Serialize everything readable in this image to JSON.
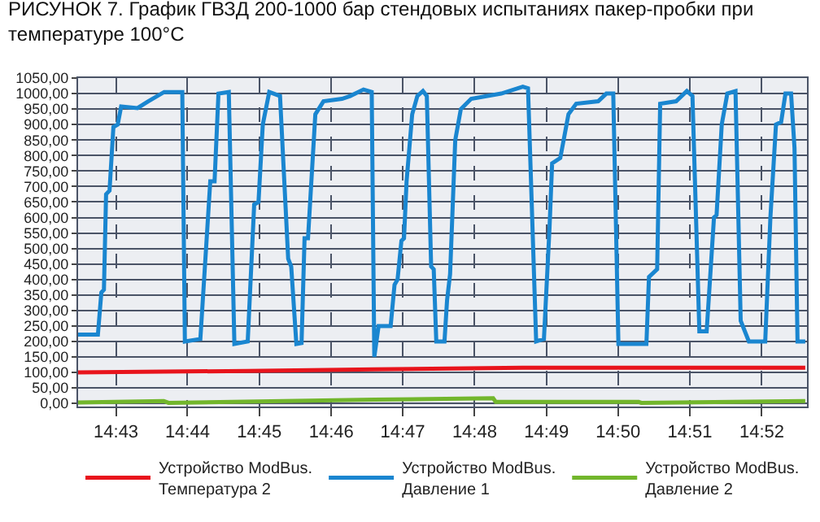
{
  "chart_data": {
    "type": "line",
    "title": "РИСУНОК 7. График ГВЗД 200-1000 бар стендовых испытаниях пакер-пробки при температуре 100°C",
    "xlim": [
      14.7079,
      14.8772
    ],
    "xticks": [
      {
        "value": 14.7167,
        "label": "14:43"
      },
      {
        "value": 14.7333,
        "label": "14:44"
      },
      {
        "value": 14.75,
        "label": "14:45"
      },
      {
        "value": 14.7667,
        "label": "14:46"
      },
      {
        "value": 14.7833,
        "label": "14:47"
      },
      {
        "value": 14.8,
        "label": "14:48"
      },
      {
        "value": 14.8167,
        "label": "14:49"
      },
      {
        "value": 14.8333,
        "label": "14:50"
      },
      {
        "value": 14.85,
        "label": "14:51"
      },
      {
        "value": 14.8667,
        "label": "14:52"
      }
    ],
    "ylim": [
      -10,
      1050
    ],
    "yticks": [
      {
        "value": 0,
        "label": "0,00"
      },
      {
        "value": 50,
        "label": "50,00"
      },
      {
        "value": 100,
        "label": "100,00"
      },
      {
        "value": 150,
        "label": "150,00"
      },
      {
        "value": 200,
        "label": "200,00"
      },
      {
        "value": 250,
        "label": "250,00"
      },
      {
        "value": 300,
        "label": "300,00"
      },
      {
        "value": 350,
        "label": "350,00"
      },
      {
        "value": 400,
        "label": "400,00"
      },
      {
        "value": 450,
        "label": "450,00"
      },
      {
        "value": 500,
        "label": "500,00"
      },
      {
        "value": 550,
        "label": "550,00"
      },
      {
        "value": 600,
        "label": "600,00"
      },
      {
        "value": 650,
        "label": "650,00"
      },
      {
        "value": 700,
        "label": "700,00"
      },
      {
        "value": 750,
        "label": "750,00"
      },
      {
        "value": 800,
        "label": "800,00"
      },
      {
        "value": 850,
        "label": "850,00"
      },
      {
        "value": 900,
        "label": "900,00"
      },
      {
        "value": 950,
        "label": "950,00"
      },
      {
        "value": 1000,
        "label": "1000,00"
      },
      {
        "value": 1050,
        "label": "1050,00"
      }
    ],
    "grid": true,
    "legend": "bottom",
    "marker": "none",
    "line_style": "solid",
    "series": [
      {
        "name": "Устройство ModBus. Температура 2",
        "color": "#e8141c",
        "x": [
          14.7079,
          14.7473,
          14.7767,
          14.8112,
          14.8768
        ],
        "values": [
          100,
          105,
          110,
          115,
          115
        ]
      },
      {
        "name": "Устройство ModBus. Давление 1",
        "color": "#1a86d0",
        "x": [
          14.7079,
          14.7125,
          14.7133,
          14.7139,
          14.7144,
          14.7152,
          14.7161,
          14.7171,
          14.7179,
          14.7217,
          14.7242,
          14.7279,
          14.7321,
          14.7327,
          14.7363,
          14.7386,
          14.7396,
          14.7405,
          14.7429,
          14.7442,
          14.7473,
          14.7488,
          14.7498,
          14.7508,
          14.7523,
          14.7548,
          14.7567,
          14.7574,
          14.7586,
          14.7598,
          14.7605,
          14.7613,
          14.763,
          14.7649,
          14.7692,
          14.7711,
          14.7742,
          14.7761,
          14.7767,
          14.7777,
          14.7805,
          14.7814,
          14.7821,
          14.783,
          14.7836,
          14.7842,
          14.7855,
          14.7867,
          14.788,
          14.7889,
          14.7899,
          14.7905,
          14.7911,
          14.793,
          14.7936,
          14.7943,
          14.7955,
          14.7968,
          14.7992,
          14.8062,
          14.8112,
          14.8124,
          14.8143,
          14.8161,
          14.8174,
          14.818,
          14.8199,
          14.8218,
          14.8236,
          14.8287,
          14.8306,
          14.8322,
          14.8334,
          14.8399,
          14.8405,
          14.8424,
          14.8431,
          14.8468,
          14.8493,
          14.8506,
          14.8522,
          14.8539,
          14.8556,
          14.8562,
          14.8574,
          14.8587,
          14.8606,
          14.8618,
          14.8637,
          14.8675,
          14.8687,
          14.87,
          14.8712,
          14.8722,
          14.8735,
          14.8743,
          14.875,
          14.8768
        ],
        "values": [
          222,
          222,
          358,
          367,
          675,
          687,
          892,
          900,
          958,
          953,
          975,
          1005,
          1005,
          200,
          208,
          717,
          717,
          1000,
          1005,
          192,
          200,
          642,
          650,
          900,
          1005,
          992,
          467,
          442,
          192,
          195,
          533,
          533,
          933,
          975,
          983,
          992,
          1013,
          1005,
          150,
          250,
          250,
          383,
          400,
          525,
          533,
          717,
          933,
          992,
          1008,
          992,
          442,
          433,
          200,
          200,
          333,
          417,
          850,
          950,
          983,
          1000,
          1022,
          1017,
          200,
          208,
          567,
          775,
          792,
          933,
          967,
          975,
          1000,
          1000,
          192,
          192,
          408,
          433,
          967,
          975,
          1008,
          992,
          233,
          233,
          600,
          608,
          900,
          1000,
          1008,
          267,
          200,
          200,
          600,
          900,
          908,
          1000,
          1000,
          825,
          200,
          200
        ]
      },
      {
        "name": "Устройство ModBus. Давление 2",
        "color": "#72b62c",
        "x": [
          14.7079,
          14.7278,
          14.7289,
          14.7767,
          14.8043,
          14.8049,
          14.8381,
          14.8387,
          14.8768
        ],
        "values": [
          3,
          8,
          2,
          12,
          17,
          5,
          5,
          2,
          8
        ]
      }
    ]
  }
}
